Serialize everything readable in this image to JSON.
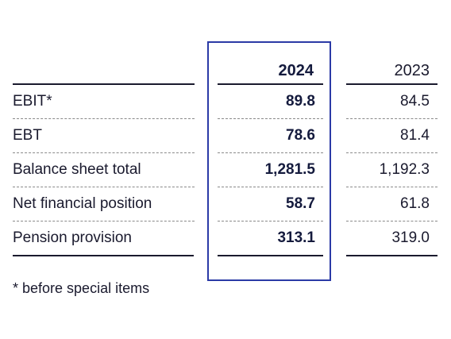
{
  "header": {
    "col_current": "2024",
    "col_previous": "2023"
  },
  "rows": [
    {
      "label": "EBIT*",
      "current": "89.8",
      "previous": "84.5"
    },
    {
      "label": "EBT",
      "current": "78.6",
      "previous": "81.4"
    },
    {
      "label": "Balance sheet total",
      "current": "1,281.5",
      "previous": "1,192.3"
    },
    {
      "label": "Net financial position",
      "current": "58.7",
      "previous": "61.8"
    },
    {
      "label": "Pension provision",
      "current": "313.1",
      "previous": "319.0"
    }
  ],
  "footnote": "* before special items",
  "colors": {
    "highlight_border": "#2b3aa6",
    "text": "#1a1a2e"
  }
}
